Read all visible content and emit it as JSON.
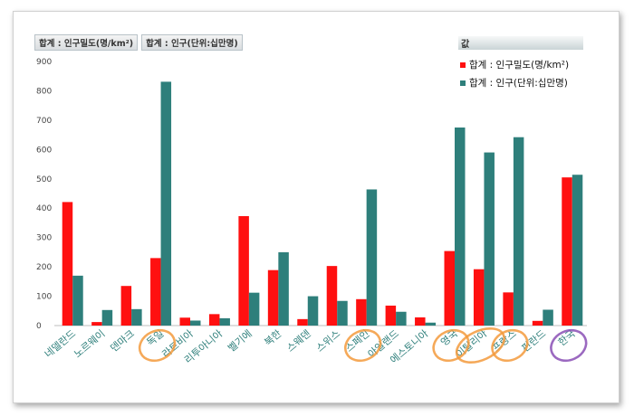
{
  "tags": [
    "합계 : 인구밀도(명/km²)",
    "합계 : 인구(단위:십만명)"
  ],
  "legend": {
    "title": "값",
    "items": [
      {
        "label": "합계 : 인구밀도(명/km²)",
        "color": "#ff1010"
      },
      {
        "label": "합계 : 인구(단위:십만명)",
        "color": "#2e7f7b"
      }
    ]
  },
  "chart_data": {
    "type": "bar",
    "ylim": [
      0,
      900
    ],
    "yticks": [
      0,
      100,
      200,
      300,
      400,
      500,
      600,
      700,
      800,
      900
    ],
    "grid": false,
    "legend_position": "top-right",
    "categories": [
      "네델란드",
      "노르웨이",
      "덴마크",
      "독일",
      "라트비아",
      "리투아니아",
      "벨기에",
      "북한",
      "스웨덴",
      "스위스",
      "스페인",
      "아일랜드",
      "에스토니아",
      "영국",
      "이탈리아",
      "프랑스",
      "핀란드",
      "한국"
    ],
    "series": [
      {
        "name": "합계 : 인구밀도(명/km²)",
        "color": "#ff1010",
        "values": [
          421,
          12,
          135,
          230,
          27,
          39,
          373,
          189,
          22,
          203,
          90,
          68,
          28,
          254,
          192,
          113,
          16,
          505
        ]
      },
      {
        "name": "합계 : 인구(단위:십만명)",
        "color": "#2e7f7b",
        "values": [
          170,
          53,
          56,
          831,
          17,
          25,
          112,
          250,
          100,
          84,
          464,
          47,
          10,
          675,
          590,
          642,
          54,
          514
        ]
      }
    ]
  },
  "annotations": {
    "orange_circled": [
      "독일",
      "스페인",
      "영국",
      "이탈리아",
      "프랑스"
    ],
    "purple_circled": [
      "한국"
    ],
    "orange_color": "#f39a3c",
    "purple_color": "#8a4fb5"
  }
}
